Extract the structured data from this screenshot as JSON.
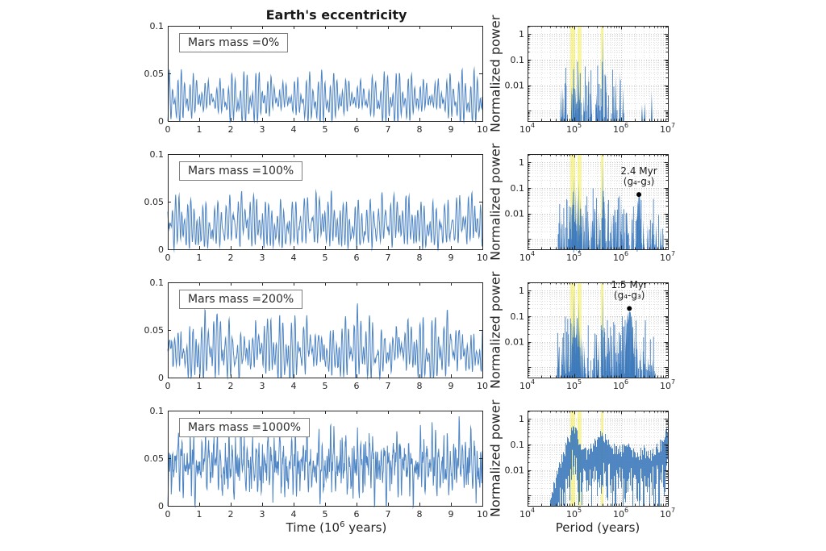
{
  "figure": {
    "title": "Earth's eccentricity",
    "xlabel_left": {
      "pre": "Time (10",
      "sup": "6",
      "post": " years)"
    },
    "xlabel_right": "Period (years)",
    "ylabel_right": "Normalized power",
    "colors": {
      "series_line": "#4d84c4",
      "spectrum_fill": "#3d7abb",
      "highlight_band": "#f5ef62",
      "grid_major": "#c7c7c7",
      "grid_minor": "#e0e0e0",
      "axis": "#262626",
      "annotation_dot": "#000000",
      "label_box_border": "#7d7d7d"
    }
  },
  "chart_data": {
    "type": "line",
    "left_axis": {
      "xlim": [
        0,
        10
      ],
      "ylim": [
        0,
        0.1
      ],
      "xticks": [
        0,
        1,
        2,
        3,
        4,
        5,
        6,
        7,
        8,
        9,
        10
      ],
      "xtick_labels": [
        "0",
        "1",
        "2",
        "3",
        "4",
        "5",
        "6",
        "7",
        "8",
        "9",
        "10"
      ],
      "yticks": [
        0,
        0.05,
        0.1
      ],
      "ytick_labels": [
        "0",
        "0.05",
        "0.1"
      ],
      "xlabel": "Time (10^6 years)",
      "grid": false
    },
    "right_axis": {
      "xscale": "log",
      "yscale": "log",
      "xlim": [
        10000,
        10000000
      ],
      "ylim_exp": [
        -3.4,
        0.32
      ],
      "xtick_exponents": [
        4,
        5,
        6,
        7
      ],
      "ytick_values": [
        1,
        0.1,
        0.01
      ],
      "ytick_labels": [
        "1",
        "0.1",
        "0.01"
      ],
      "xlabel": "Period (years)",
      "ylabel": "Normalized power",
      "grid": true,
      "highlight_bands_years": [
        [
          82000,
          105000
        ],
        [
          117000,
          142000
        ],
        [
          370000,
          420000
        ]
      ]
    },
    "rows": [
      {
        "label": "Mars mass =0%",
        "timeseries": {
          "seed": 11,
          "mean": 0.023,
          "noise": 0.0015,
          "components": [
            {
              "period_kyr": 95,
              "amp": 0.012
            },
            {
              "period_kyr": 124,
              "amp": 0.01
            },
            {
              "period_kyr": 99,
              "amp": 0.004
            },
            {
              "period_kyr": 131,
              "amp": 0.004
            },
            {
              "period_kyr": 405,
              "amp": 0.004
            },
            {
              "period_kyr": 2400,
              "amp": 0.002
            }
          ]
        },
        "spectrum": {
          "seed": 21,
          "noise_spikes": 60,
          "noise_range_years": [
            48000,
            1250000
          ],
          "peaks": [
            [
              52000,
              0.007
            ],
            [
              57000,
              0.008
            ],
            [
              63000,
              0.004
            ],
            [
              88000,
              0.009
            ],
            [
              97000,
              0.09
            ],
            [
              107000,
              0.008
            ],
            [
              124000,
              0.05
            ],
            [
              130000,
              0.006
            ],
            [
              160000,
              0.004
            ],
            [
              200000,
              0.03
            ],
            [
              230000,
              0.004
            ],
            [
              300000,
              0.005
            ],
            [
              405000,
              1.0
            ],
            [
              480000,
              0.015
            ],
            [
              700000,
              0.008
            ],
            [
              770000,
              0.024
            ],
            [
              950000,
              0.035
            ],
            [
              1100000,
              0.008
            ],
            [
              2800000,
              0.0018
            ],
            [
              3200000,
              0.0022
            ],
            [
              4500000,
              0.006
            ]
          ],
          "annotation": null
        }
      },
      {
        "label": "Mars mass =100%",
        "timeseries": {
          "seed": 12,
          "mean": 0.026,
          "noise": 0.0025,
          "components": [
            {
              "period_kyr": 95,
              "amp": 0.013
            },
            {
              "period_kyr": 124,
              "amp": 0.011
            },
            {
              "period_kyr": 99,
              "amp": 0.005
            },
            {
              "period_kyr": 131,
              "amp": 0.005
            },
            {
              "period_kyr": 405,
              "amp": 0.005
            },
            {
              "period_kyr": 2400,
              "amp": 0.004
            },
            {
              "period_kyr": 70,
              "amp": 0.003
            }
          ]
        },
        "spectrum": {
          "seed": 22,
          "noise_spikes": 130,
          "noise_range_years": [
            45000,
            8000000
          ],
          "peaks": [
            [
              52000,
              0.007
            ],
            [
              60000,
              0.005
            ],
            [
              80000,
              0.012
            ],
            [
              90000,
              0.05
            ],
            [
              97000,
              0.32
            ],
            [
              105000,
              0.09
            ],
            [
              115000,
              0.05
            ],
            [
              124000,
              0.2
            ],
            [
              133000,
              0.04
            ],
            [
              145000,
              0.012
            ],
            [
              160000,
              0.01
            ],
            [
              175000,
              0.008
            ],
            [
              200000,
              0.007
            ],
            [
              230000,
              0.006
            ],
            [
              260000,
              0.007
            ],
            [
              300000,
              0.01
            ],
            [
              340000,
              0.012
            ],
            [
              405000,
              1.0
            ],
            [
              450000,
              0.018
            ],
            [
              520000,
              0.012
            ],
            [
              620000,
              0.01
            ],
            [
              720000,
              0.02
            ],
            [
              820000,
              0.012
            ],
            [
              1000000,
              0.04
            ],
            [
              1150000,
              0.018
            ],
            [
              1350000,
              0.012
            ],
            [
              1700000,
              0.01
            ],
            [
              2400000,
              0.05,
              0.06
            ],
            [
              3000000,
              0.006
            ],
            [
              3700000,
              0.004
            ],
            [
              4600000,
              0.005
            ],
            [
              5600000,
              0.004
            ],
            [
              7000000,
              0.003
            ]
          ],
          "annotation": {
            "line1": "2.4 Myr",
            "line2": "(g₄-g₃)",
            "period_years": 2400000,
            "power": 0.055
          }
        }
      },
      {
        "label": "Mars mass =200%",
        "timeseries": {
          "seed": 13,
          "mean": 0.028,
          "noise": 0.003,
          "components": [
            {
              "period_kyr": 95,
              "amp": 0.015
            },
            {
              "period_kyr": 124,
              "amp": 0.012
            },
            {
              "period_kyr": 99,
              "amp": 0.006
            },
            {
              "period_kyr": 131,
              "amp": 0.006
            },
            {
              "period_kyr": 405,
              "amp": 0.005
            },
            {
              "period_kyr": 1500,
              "amp": 0.005
            },
            {
              "period_kyr": 70,
              "amp": 0.004
            }
          ]
        },
        "spectrum": {
          "seed": 23,
          "noise_spikes": 140,
          "noise_range_years": [
            42000,
            5500000
          ],
          "peaks": [
            [
              46000,
              0.005
            ],
            [
              54000,
              0.006
            ],
            [
              62000,
              0.004
            ],
            [
              72000,
              0.008
            ],
            [
              82000,
              0.02
            ],
            [
              90000,
              0.06
            ],
            [
              97000,
              1.0
            ],
            [
              103000,
              0.1
            ],
            [
              110000,
              0.06
            ],
            [
              117000,
              0.08
            ],
            [
              124000,
              0.5
            ],
            [
              131000,
              0.04
            ],
            [
              140000,
              0.02
            ],
            [
              152000,
              0.012
            ],
            [
              165000,
              0.007
            ],
            [
              270000,
              0.01
            ],
            [
              300000,
              0.015
            ],
            [
              330000,
              0.012
            ],
            [
              405000,
              1.0
            ],
            [
              450000,
              0.014
            ],
            [
              500000,
              0.015
            ],
            [
              560000,
              0.012
            ],
            [
              640000,
              0.009
            ],
            [
              730000,
              0.012
            ],
            [
              820000,
              0.015
            ],
            [
              950000,
              0.025
            ],
            [
              1100000,
              0.05
            ],
            [
              1300000,
              0.09
            ],
            [
              1500000,
              0.15,
              0.1
            ],
            [
              1700000,
              0.06
            ],
            [
              1900000,
              0.025
            ],
            [
              2200000,
              0.012
            ],
            [
              2600000,
              0.006
            ],
            [
              3100000,
              0.003
            ],
            [
              3800000,
              0.0025
            ],
            [
              4700000,
              0.002
            ]
          ],
          "annotation": {
            "line1": "1.5 Myr",
            "line2": "(g₄-g₃)",
            "period_years": 1500000,
            "power": 0.2
          }
        }
      },
      {
        "label": "Mars mass =1000%",
        "timeseries": {
          "seed": 14,
          "mean": 0.043,
          "noise": 0.009,
          "components": [
            {
              "period_kyr": 95,
              "amp": 0.013
            },
            {
              "period_kyr": 124,
              "amp": 0.011
            },
            {
              "period_kyr": 62,
              "amp": 0.009
            },
            {
              "period_kyr": 53,
              "amp": 0.007
            },
            {
              "period_kyr": 405,
              "amp": 0.006
            },
            {
              "period_kyr": 173,
              "amp": 0.005
            },
            {
              "period_kyr": 1000,
              "amp": 0.004
            }
          ]
        },
        "spectrum": {
          "seed": 24,
          "noise_spikes": 0,
          "noise_range_years": [
            30000,
            10000000
          ],
          "peaks": [],
          "continuum": [
            [
              30000,
              0.0008
            ],
            [
              40000,
              0.004
            ],
            [
              55000,
              0.03
            ],
            [
              70000,
              0.12
            ],
            [
              85000,
              0.25
            ],
            [
              100000,
              0.3
            ],
            [
              115000,
              0.2
            ],
            [
              130000,
              0.12
            ],
            [
              150000,
              0.07
            ],
            [
              180000,
              0.045
            ],
            [
              220000,
              0.06
            ],
            [
              260000,
              0.1
            ],
            [
              320000,
              0.2
            ],
            [
              380000,
              0.25
            ],
            [
              430000,
              0.18
            ],
            [
              500000,
              0.1
            ],
            [
              600000,
              0.06
            ],
            [
              750000,
              0.07
            ],
            [
              900000,
              0.05
            ],
            [
              1100000,
              0.06
            ],
            [
              1400000,
              0.09
            ],
            [
              1800000,
              0.05
            ],
            [
              2300000,
              0.035
            ],
            [
              3000000,
              0.06
            ],
            [
              4000000,
              0.04
            ],
            [
              5000000,
              0.05
            ],
            [
              6500000,
              0.09
            ],
            [
              8000000,
              0.1
            ],
            [
              10000000,
              0.6
            ]
          ],
          "annotation": null
        }
      }
    ]
  }
}
